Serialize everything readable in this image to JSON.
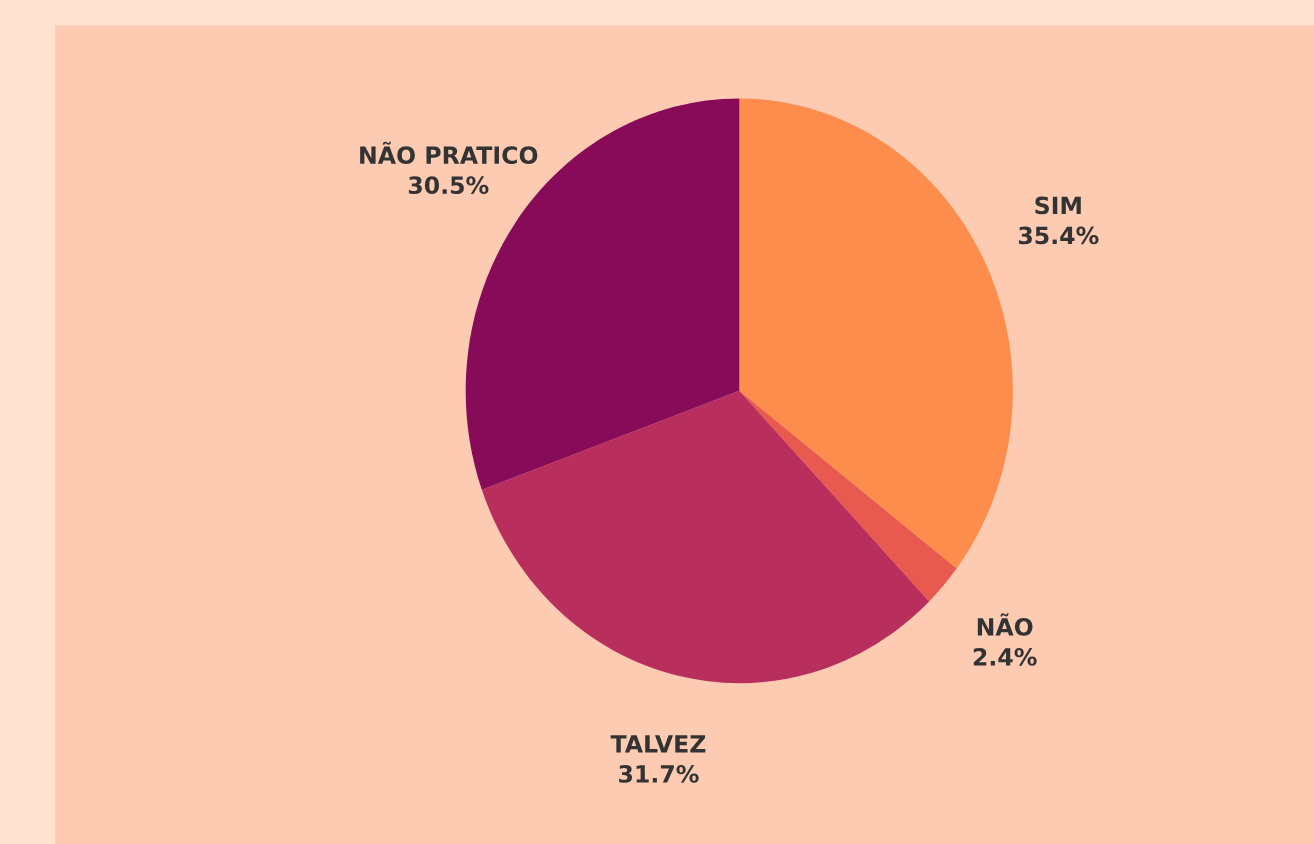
{
  "chart_data": {
    "type": "pie",
    "categories": [
      "SIM",
      "NÃO",
      "TALVEZ",
      "NÃO PRATICO"
    ],
    "values": [
      35.4,
      2.4,
      31.7,
      30.5
    ],
    "value_labels": [
      "35.4%",
      "2.4%",
      "31.7%",
      "30.5%"
    ],
    "colors": [
      "#fd8d4c",
      "#e8594f",
      "#b82f5e",
      "#870b59"
    ]
  }
}
